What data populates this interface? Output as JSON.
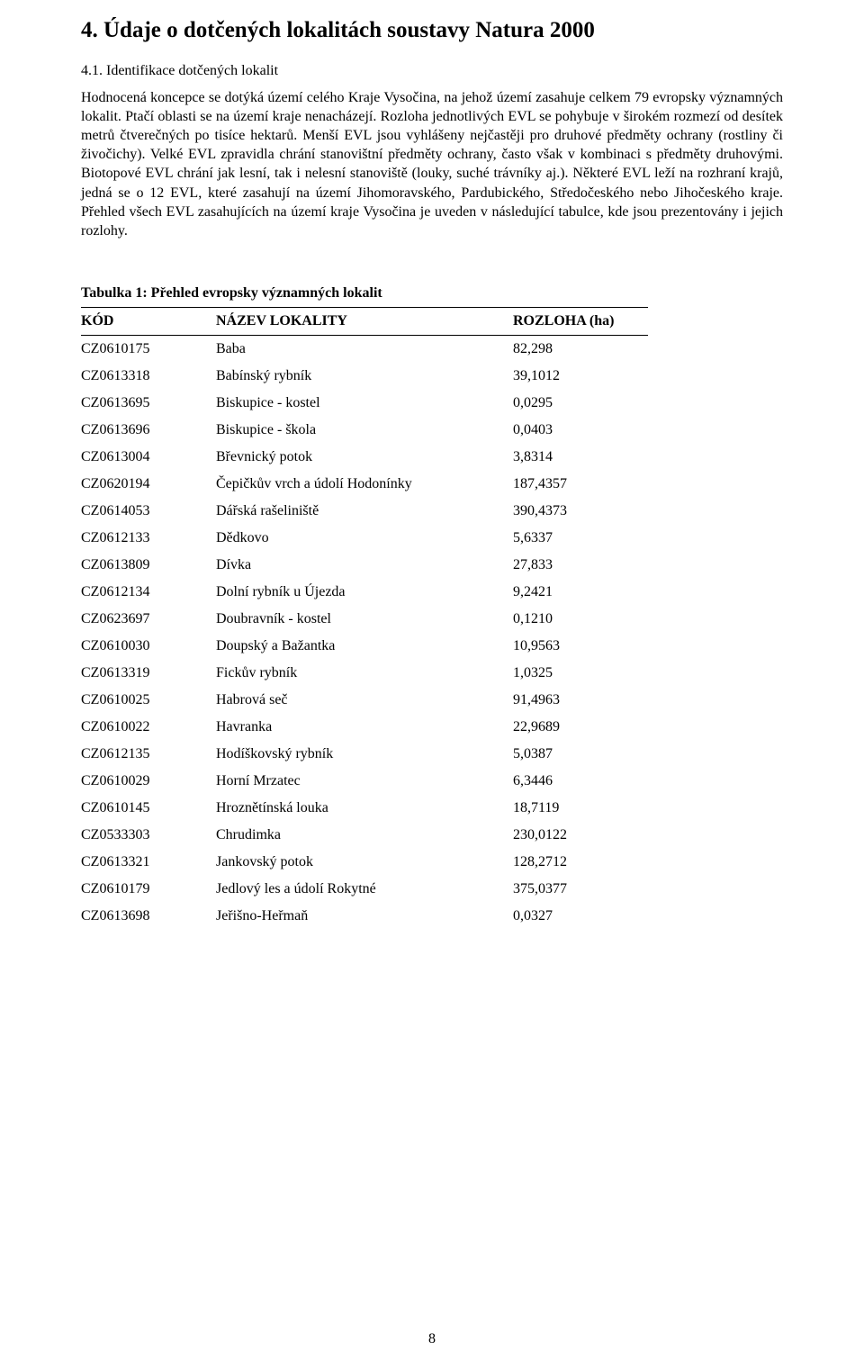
{
  "heading": "4. Údaje o dotčených lokalitách soustavy Natura 2000",
  "subhead": "4.1. Identifikace dotčených lokalit",
  "paragraph": "Hodnocená koncepce se dotýká území celého Kraje Vysočina, na jehož území zasahuje celkem 79 evropsky významných lokalit. Ptačí oblasti se na území kraje nenacházejí. Rozloha jednotlivých EVL se pohybuje v širokém rozmezí od desítek metrů čtverečných po tisíce hektarů. Menší EVL jsou vyhlášeny nejčastěji pro druhové předměty ochrany (rostliny či živočichy). Velké EVL zpravidla chrání stanovištní předměty ochrany, často však v kombinaci s předměty druhovými. Biotopové EVL chrání jak lesní, tak i nelesní stanoviště (louky, suché trávníky aj.). Některé EVL leží na rozhraní krajů, jedná se o 12 EVL, které zasahují na území Jihomoravského, Pardubického, Středočeského nebo Jihočeského kraje. Přehled všech EVL zasahujících na území kraje Vysočina je uveden v následující tabulce, kde jsou prezentovány i jejich rozlohy.",
  "table": {
    "title": "Tabulka 1: Přehled evropsky významných lokalit",
    "columns": [
      "KÓD",
      "NÁZEV LOKALITY",
      "ROZLOHA (ha)"
    ],
    "rows": [
      [
        "CZ0610175",
        "Baba",
        "82,298"
      ],
      [
        "CZ0613318",
        "Babínský rybník",
        "39,1012"
      ],
      [
        "CZ0613695",
        "Biskupice - kostel",
        "0,0295"
      ],
      [
        "CZ0613696",
        "Biskupice - škola",
        "0,0403"
      ],
      [
        "CZ0613004",
        "Břevnický potok",
        "3,8314"
      ],
      [
        "CZ0620194",
        "Čepičkův vrch a údolí Hodonínky",
        "187,4357"
      ],
      [
        "CZ0614053",
        "Dářská rašeliniště",
        "390,4373"
      ],
      [
        "CZ0612133",
        "Dědkovo",
        "5,6337"
      ],
      [
        "CZ0613809",
        "Dívka",
        "27,833"
      ],
      [
        "CZ0612134",
        "Dolní rybník u Újezda",
        "9,2421"
      ],
      [
        "CZ0623697",
        "Doubravník - kostel",
        "0,1210"
      ],
      [
        "CZ0610030",
        "Doupský a Bažantka",
        "10,9563"
      ],
      [
        "CZ0613319",
        "Fickův rybník",
        "1,0325"
      ],
      [
        "CZ0610025",
        "Habrová seč",
        "91,4963"
      ],
      [
        "CZ0610022",
        "Havranka",
        "22,9689"
      ],
      [
        "CZ0612135",
        "Hodíškovský rybník",
        "5,0387"
      ],
      [
        "CZ0610029",
        "Horní Mrzatec",
        "6,3446"
      ],
      [
        "CZ0610145",
        "Hroznětínská louka",
        "18,7119"
      ],
      [
        "CZ0533303",
        "Chrudimka",
        "230,0122"
      ],
      [
        "CZ0613321",
        "Jankovský potok",
        "128,2712"
      ],
      [
        "CZ0610179",
        "Jedlový les a údolí Rokytné",
        "375,0377"
      ],
      [
        "CZ0613698",
        "Jeřišno-Heřmaň",
        "0,0327"
      ]
    ]
  },
  "page_number": "8",
  "colors": {
    "text": "#000000",
    "background": "#ffffff",
    "rule": "#000000"
  }
}
